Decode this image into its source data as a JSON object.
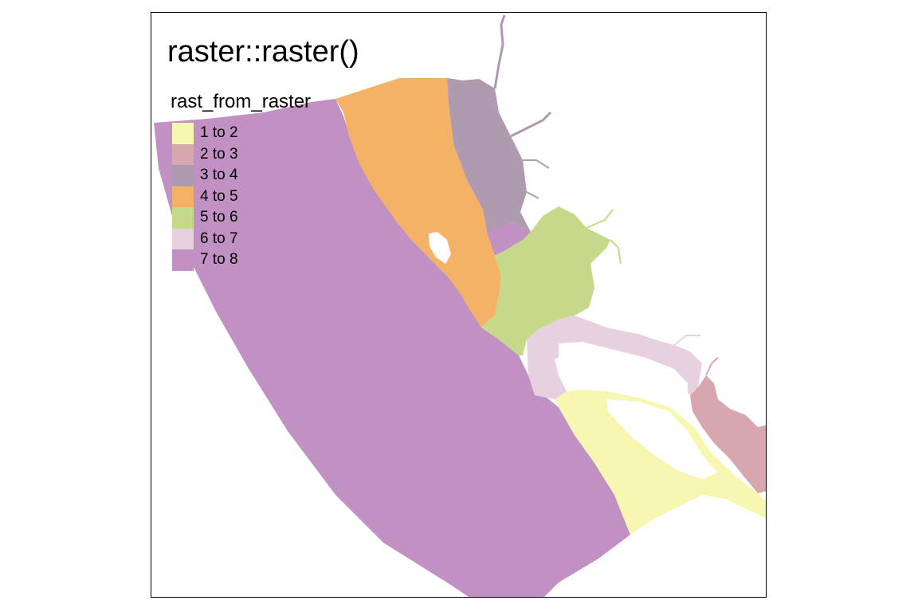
{
  "map": {
    "title": "raster::raster()",
    "legend_title": "rast_from_raster",
    "legend": [
      {
        "label": "1 to 2",
        "color": "#F7F7B2"
      },
      {
        "label": "2 to 3",
        "color": "#D7A6AF"
      },
      {
        "label": "3 to 4",
        "color": "#AE9BAF"
      },
      {
        "label": "4 to 5",
        "color": "#F4B266"
      },
      {
        "label": "5 to 6",
        "color": "#C6D98A"
      },
      {
        "label": "6 to 7",
        "color": "#E8D1DE"
      },
      {
        "label": "7 to 8",
        "color": "#C191C3"
      }
    ]
  }
}
